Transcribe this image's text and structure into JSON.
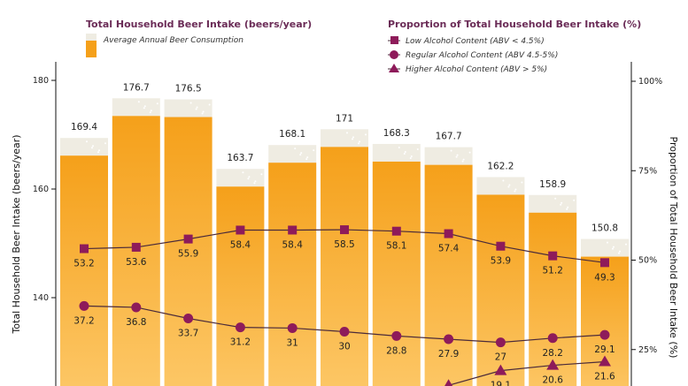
{
  "colors": {
    "beer_top": "#f5a01a",
    "beer_bottom": "#fdc96a",
    "foam": "#efece2",
    "marker": "#8e1b5a",
    "line": "#4a2a3a",
    "title": "#6b2c57"
  },
  "legend": {
    "left_title": "Total Household Beer Intake (beers/year)",
    "left_items": [
      "Average Annual Beer Consumption"
    ],
    "right_title": "Proportion of Total Household Beer Intake (%)",
    "right_items": [
      {
        "label": "Low Alcohol Content (ABV < 4.5%)",
        "marker": "square"
      },
      {
        "label": "Regular Alcohol Content (ABV 4.5-5%)",
        "marker": "circle"
      },
      {
        "label": "Higher Alcohol Content (ABV > 5%)",
        "marker": "triangle"
      }
    ]
  },
  "chart_data": {
    "type": "bar",
    "ylabel": "Total Household Beer Intake (beers/year)",
    "y2label": "Proportion of Total Household Beer Intake (%)",
    "yticks": [
      140,
      160,
      180
    ],
    "y2ticks": [
      "25%",
      "50%",
      "75%",
      "100%"
    ],
    "y2tick_values": [
      25,
      50,
      75,
      100
    ],
    "ylim_visible": [
      127,
      184
    ],
    "y2lim_visible": [
      15,
      104
    ],
    "bars": {
      "name": "Average Annual Beer Consumption",
      "values": [
        169.4,
        176.7,
        176.5,
        163.7,
        168.1,
        171,
        168.3,
        167.7,
        162.2,
        158.9,
        150.8
      ]
    },
    "series": [
      {
        "name": "Low Alcohol Content (ABV < 4.5%)",
        "marker": "square",
        "values": [
          53.2,
          53.6,
          55.9,
          58.4,
          58.4,
          58.5,
          58.1,
          57.4,
          53.9,
          51.2,
          49.3
        ]
      },
      {
        "name": "Regular Alcohol Content (ABV 4.5-5%)",
        "marker": "circle",
        "values": [
          37.2,
          36.8,
          33.7,
          31.2,
          31,
          30,
          28.8,
          27.9,
          27,
          28.2,
          29.1
        ]
      },
      {
        "name": "Higher Alcohol Content (ABV > 5%)",
        "marker": "triangle",
        "values": [
          null,
          null,
          null,
          null,
          null,
          null,
          null,
          15,
          19.1,
          20.6,
          21.6
        ],
        "labeled": [
          false,
          false,
          false,
          false,
          false,
          false,
          false,
          false,
          true,
          true,
          true
        ]
      }
    ]
  }
}
